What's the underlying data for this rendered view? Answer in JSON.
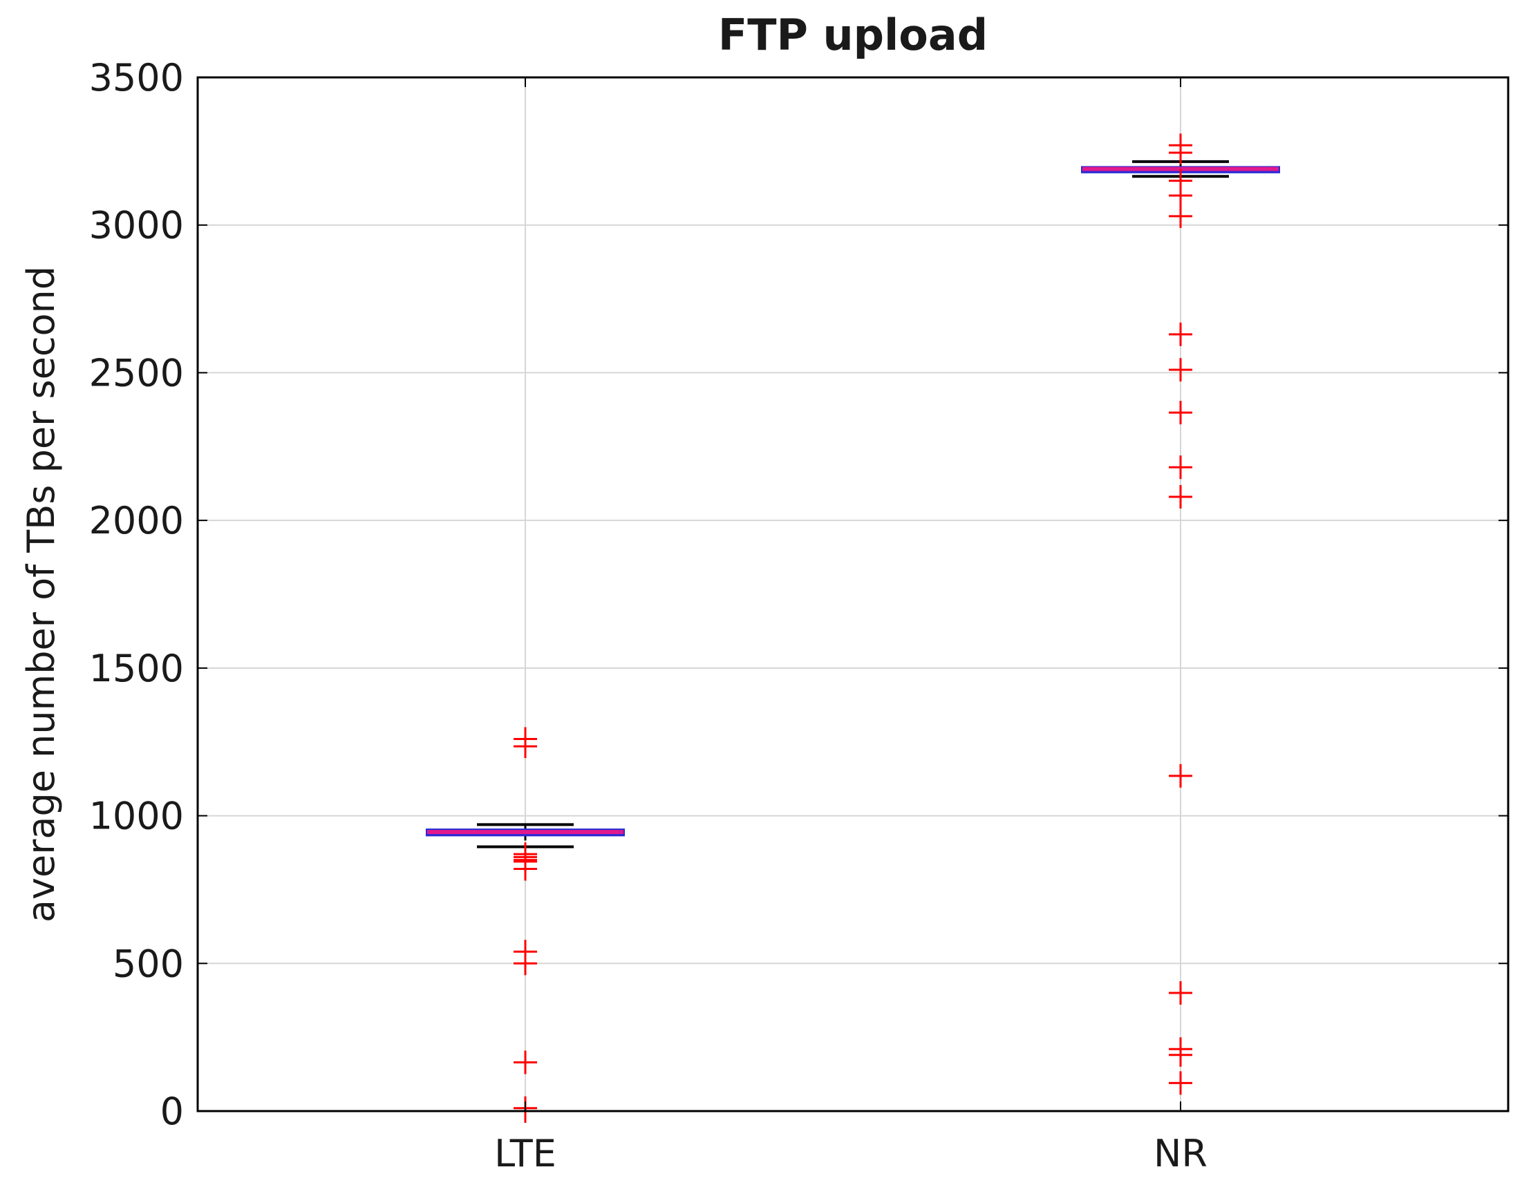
{
  "chart_data": {
    "type": "box",
    "title": "FTP upload",
    "xlabel": "",
    "ylabel": "average number of TBs per second",
    "categories": [
      "LTE",
      "NR"
    ],
    "ylim": [
      0,
      3500
    ],
    "yticks": [
      0,
      500,
      1000,
      1500,
      2000,
      2500,
      3000,
      3500
    ],
    "grid": true,
    "colors": {
      "median": "#e0198c",
      "box": "#2a2ad6",
      "whisker": "#000000",
      "outlier": "#ff0000",
      "grid": "#d6d6d6"
    },
    "series": [
      {
        "name": "LTE",
        "min": 895,
        "q1": 935,
        "median": 945,
        "q3": 952,
        "max": 970,
        "outliers": [
          1260,
          1235,
          870,
          860,
          850,
          845,
          820,
          540,
          500,
          165,
          10,
          0
        ]
      },
      {
        "name": "NR",
        "min": 3165,
        "q1": 3180,
        "median": 3190,
        "q3": 3195,
        "max": 3215,
        "outliers": [
          3270,
          3245,
          3150,
          3100,
          3030,
          2630,
          2510,
          2365,
          2180,
          2080,
          1135,
          400,
          210,
          190,
          95
        ]
      }
    ]
  }
}
